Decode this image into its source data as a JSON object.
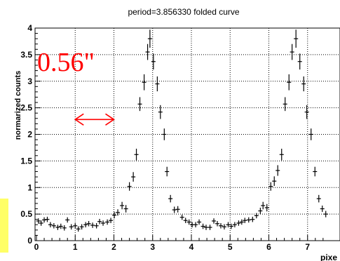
{
  "chart_data": {
    "type": "scatter",
    "title": "period=3.856330 folded curve",
    "xlabel": "pixe",
    "ylabel": "normarized counts",
    "xlim": [
      0,
      7.52
    ],
    "ylim": [
      0,
      4.0
    ],
    "xticks": [
      "0",
      "1",
      "2",
      "3",
      "4",
      "5",
      "6",
      "7"
    ],
    "yticks": [
      "0",
      "0.5",
      "1",
      "1.5",
      "2",
      "2.5",
      "3",
      "3.5",
      "4"
    ],
    "grid": true,
    "legend": "none",
    "series": [
      {
        "x": [
          0.05,
          0.12,
          0.2,
          0.28,
          0.36,
          0.45,
          0.55,
          0.63,
          0.72,
          0.8,
          0.9,
          1.0,
          1.08,
          1.17,
          1.27,
          1.35,
          1.45,
          1.55,
          1.63,
          1.72,
          1.83,
          1.92,
          2.01,
          2.1,
          2.21,
          2.31,
          2.4,
          2.5,
          2.58,
          2.67,
          2.78,
          2.87,
          2.93,
          3.02,
          3.12,
          3.2,
          3.3,
          3.37,
          3.46,
          3.56,
          3.65,
          3.76,
          3.85,
          3.94,
          4.02,
          4.11,
          4.2,
          4.3,
          4.38,
          4.48,
          4.58,
          4.67,
          4.76,
          4.85,
          4.95,
          5.03,
          5.12,
          5.22,
          5.3,
          5.38,
          5.48,
          5.58,
          5.68,
          5.78,
          5.85,
          5.95,
          6.05,
          6.14,
          6.23,
          6.33,
          6.42,
          6.52,
          6.6,
          6.7,
          6.8,
          6.9,
          6.98,
          7.09,
          7.19,
          7.29,
          7.38,
          7.47
        ],
        "y": [
          0.37,
          0.33,
          0.39,
          0.4,
          0.3,
          0.28,
          0.25,
          0.27,
          0.24,
          0.39,
          0.26,
          0.28,
          0.22,
          0.26,
          0.3,
          0.32,
          0.29,
          0.28,
          0.36,
          0.33,
          0.35,
          0.38,
          0.48,
          0.53,
          0.66,
          0.6,
          1.02,
          1.2,
          1.62,
          2.57,
          2.98,
          3.55,
          3.8,
          3.37,
          2.95,
          2.42,
          2.0,
          1.3,
          0.79,
          0.58,
          0.59,
          0.44,
          0.38,
          0.35,
          0.3,
          0.3,
          0.35,
          0.27,
          0.25,
          0.25,
          0.37,
          0.32,
          0.28,
          0.26,
          0.3,
          0.27,
          0.3,
          0.33,
          0.35,
          0.38,
          0.39,
          0.4,
          0.47,
          0.56,
          0.66,
          0.62,
          1.02,
          1.12,
          1.32,
          1.62,
          2.57,
          2.98,
          3.55,
          3.8,
          3.37,
          2.95,
          2.42,
          2.0,
          1.3,
          0.79,
          0.6,
          0.5
        ],
        "yerr": [
          0.05,
          0.05,
          0.05,
          0.05,
          0.05,
          0.05,
          0.05,
          0.05,
          0.05,
          0.05,
          0.05,
          0.05,
          0.05,
          0.05,
          0.05,
          0.05,
          0.05,
          0.05,
          0.05,
          0.05,
          0.05,
          0.05,
          0.06,
          0.06,
          0.07,
          0.07,
          0.08,
          0.09,
          0.11,
          0.13,
          0.15,
          0.15,
          0.17,
          0.15,
          0.14,
          0.13,
          0.11,
          0.09,
          0.07,
          0.06,
          0.06,
          0.05,
          0.05,
          0.05,
          0.05,
          0.05,
          0.05,
          0.05,
          0.05,
          0.05,
          0.05,
          0.05,
          0.05,
          0.05,
          0.05,
          0.05,
          0.05,
          0.05,
          0.05,
          0.05,
          0.05,
          0.05,
          0.05,
          0.06,
          0.07,
          0.07,
          0.08,
          0.09,
          0.1,
          0.11,
          0.13,
          0.15,
          0.15,
          0.17,
          0.15,
          0.14,
          0.13,
          0.11,
          0.09,
          0.07,
          0.06,
          0.06
        ]
      }
    ],
    "annotations": {
      "label": "0.56\"",
      "arrow_from_x": 1.0,
      "arrow_to_x": 2.0,
      "arrow_y": 2.28
    },
    "colors": {
      "points": "#000000",
      "annotation": "#ff0000",
      "left_bar": "#ffff66"
    }
  }
}
